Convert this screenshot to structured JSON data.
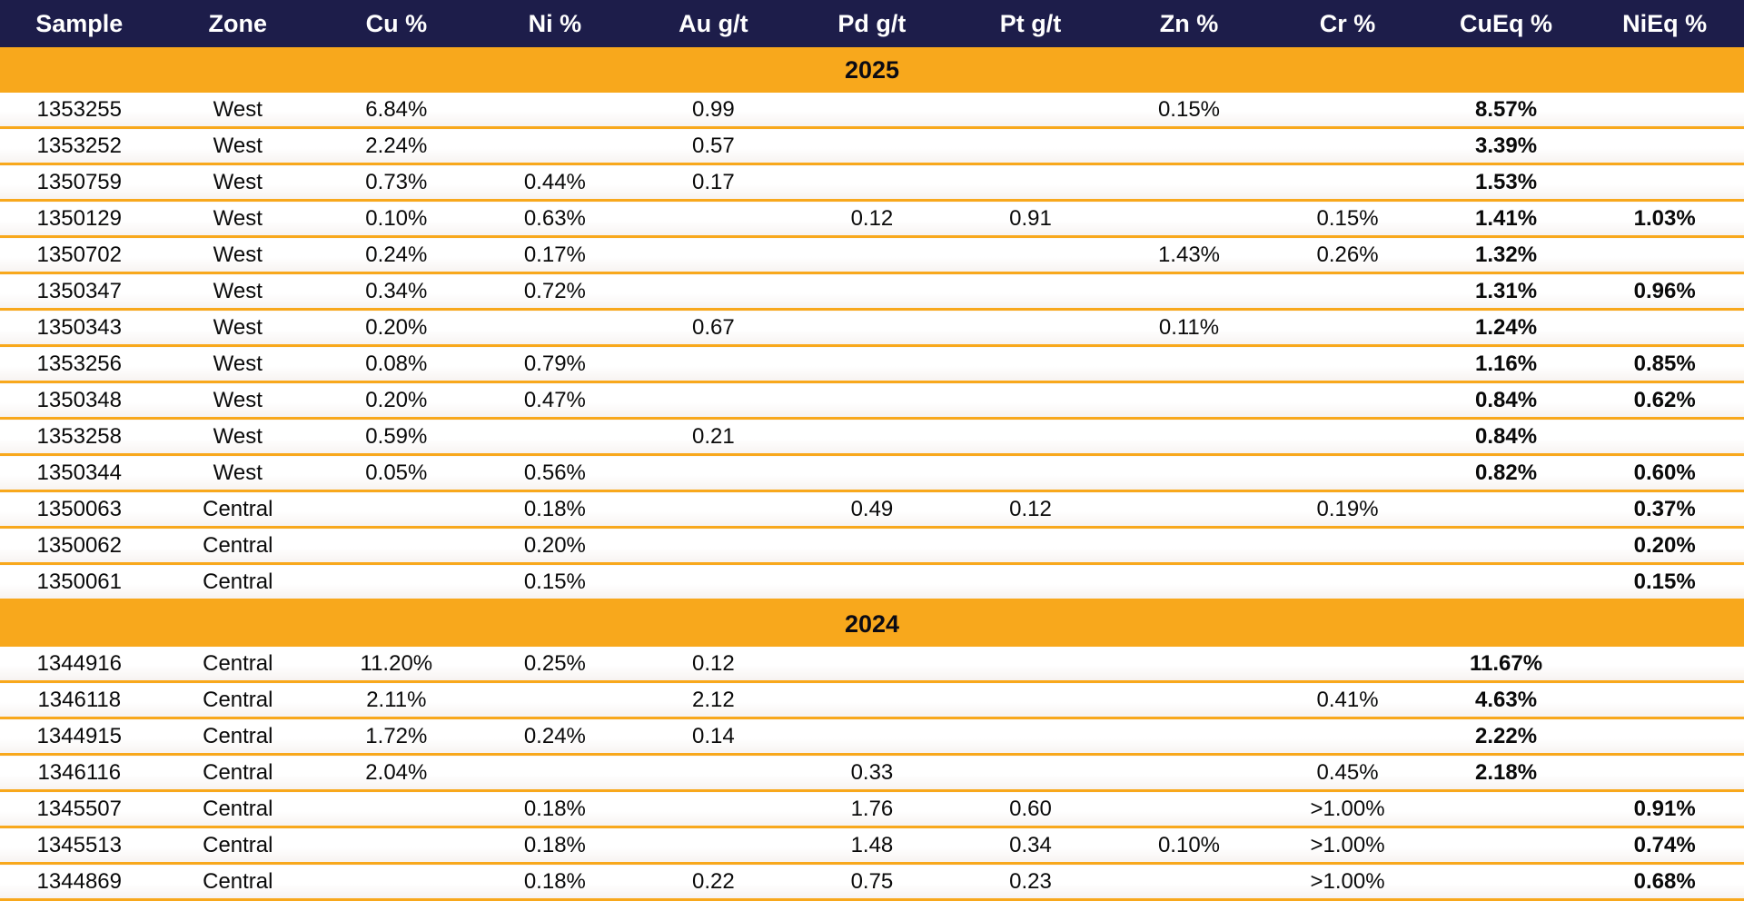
{
  "colors": {
    "header_background": "#1d1d4a",
    "header_text": "#ffffff",
    "accent_orange": "#f8a81c",
    "body_text": "#0a0a0a",
    "row_background": "#ffffff"
  },
  "chart_data": {
    "type": "table",
    "columns": [
      "Sample",
      "Zone",
      "Cu %",
      "Ni %",
      "Au g/t",
      "Pd g/t",
      "Pt g/t",
      "Zn %",
      "Cr %",
      "CuEq %",
      "NiEq %"
    ],
    "sections": [
      {
        "label": "2025",
        "rows": [
          [
            "1353255",
            "West",
            "6.84%",
            "",
            "0.99",
            "",
            "",
            "0.15%",
            "",
            "8.57%",
            ""
          ],
          [
            "1353252",
            "West",
            "2.24%",
            "",
            "0.57",
            "",
            "",
            "",
            "",
            "3.39%",
            ""
          ],
          [
            "1350759",
            "West",
            "0.73%",
            "0.44%",
            "0.17",
            "",
            "",
            "",
            "",
            "1.53%",
            ""
          ],
          [
            "1350129",
            "West",
            "0.10%",
            "0.63%",
            "",
            "0.12",
            "0.91",
            "",
            "0.15%",
            "1.41%",
            "1.03%"
          ],
          [
            "1350702",
            "West",
            "0.24%",
            "0.17%",
            "",
            "",
            "",
            "1.43%",
            "0.26%",
            "1.32%",
            ""
          ],
          [
            "1350347",
            "West",
            "0.34%",
            "0.72%",
            "",
            "",
            "",
            "",
            "",
            "1.31%",
            "0.96%"
          ],
          [
            "1350343",
            "West",
            "0.20%",
            "",
            "0.67",
            "",
            "",
            "0.11%",
            "",
            "1.24%",
            ""
          ],
          [
            "1353256",
            "West",
            "0.08%",
            "0.79%",
            "",
            "",
            "",
            "",
            "",
            "1.16%",
            "0.85%"
          ],
          [
            "1350348",
            "West",
            "0.20%",
            "0.47%",
            "",
            "",
            "",
            "",
            "",
            "0.84%",
            "0.62%"
          ],
          [
            "1353258",
            "West",
            "0.59%",
            "",
            "0.21",
            "",
            "",
            "",
            "",
            "0.84%",
            ""
          ],
          [
            "1350344",
            "West",
            "0.05%",
            "0.56%",
            "",
            "",
            "",
            "",
            "",
            "0.82%",
            "0.60%"
          ],
          [
            "1350063",
            "Central",
            "",
            "0.18%",
            "",
            "0.49",
            "0.12",
            "",
            "0.19%",
            "",
            "0.37%"
          ],
          [
            "1350062",
            "Central",
            "",
            "0.20%",
            "",
            "",
            "",
            "",
            "",
            "",
            "0.20%"
          ],
          [
            "1350061",
            "Central",
            "",
            "0.15%",
            "",
            "",
            "",
            "",
            "",
            "",
            "0.15%"
          ]
        ]
      },
      {
        "label": "2024",
        "rows": [
          [
            "1344916",
            "Central",
            "11.20%",
            "0.25%",
            "0.12",
            "",
            "",
            "",
            "",
            "11.67%",
            ""
          ],
          [
            "1346118",
            "Central",
            "2.11%",
            "",
            "2.12",
            "",
            "",
            "",
            "0.41%",
            "4.63%",
            ""
          ],
          [
            "1344915",
            "Central",
            "1.72%",
            "0.24%",
            "0.14",
            "",
            "",
            "",
            "",
            "2.22%",
            ""
          ],
          [
            "1346116",
            "Central",
            "2.04%",
            "",
            "",
            "0.33",
            "",
            "",
            "0.45%",
            "2.18%",
            ""
          ],
          [
            "1345507",
            "Central",
            "",
            "0.18%",
            "",
            "1.76",
            "0.60",
            "",
            ">1.00%",
            "",
            "0.91%"
          ],
          [
            "1345513",
            "Central",
            "",
            "0.18%",
            "",
            "1.48",
            "0.34",
            "0.10%",
            ">1.00%",
            "",
            "0.74%"
          ],
          [
            "1344869",
            "Central",
            "",
            "0.18%",
            "0.22",
            "0.75",
            "0.23",
            "",
            ">1.00%",
            "",
            "0.68%"
          ]
        ]
      }
    ]
  }
}
